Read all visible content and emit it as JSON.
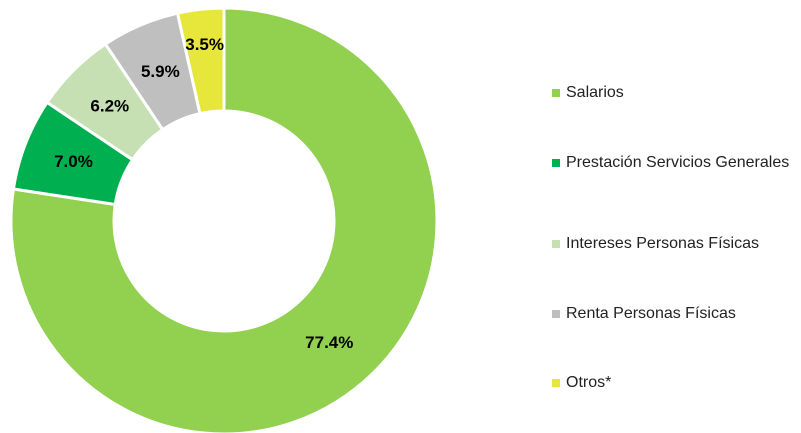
{
  "chart_data": {
    "type": "pie",
    "categories": [
      "Salarios",
      "Prestación Servicios Generales",
      "Intereses Personas Físicas",
      "Renta Personas Físicas",
      "Otros*"
    ],
    "values": [
      77.4,
      7.0,
      6.2,
      5.9,
      3.5
    ],
    "value_labels": [
      "77.4%",
      "7.0%",
      "6.2%",
      "5.9%",
      "3.5%"
    ],
    "colors": [
      "#92d050",
      "#00b050",
      "#c6e0b4",
      "#bfbfbf",
      "#e7e63a"
    ],
    "legend": "right"
  }
}
